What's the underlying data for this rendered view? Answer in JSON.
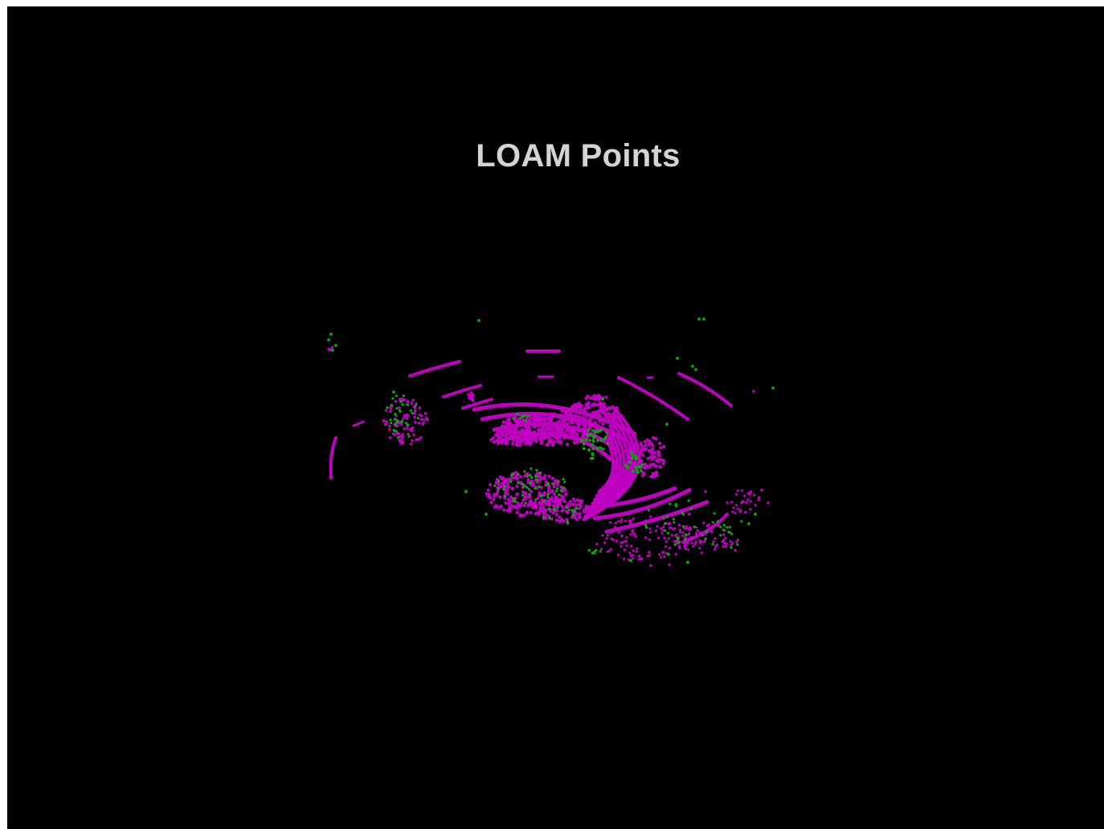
{
  "title": "LOAM Points",
  "colors": {
    "background": "#000000",
    "title": "#d4d4d4",
    "surface_points": "#c000c0",
    "edge_points": "#00b000"
  }
}
